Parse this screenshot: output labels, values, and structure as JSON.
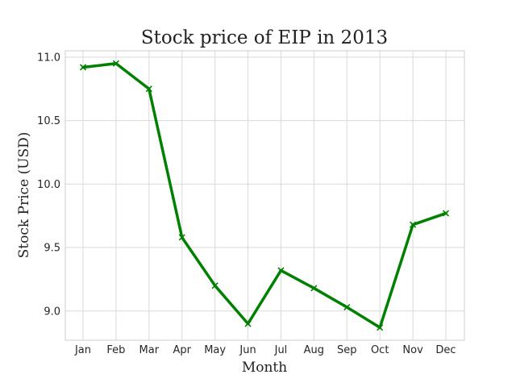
{
  "chart_data": {
    "type": "line",
    "title": "Stock price of EIP in 2013",
    "xlabel": "Month",
    "ylabel": "Stock Price (USD)",
    "categories": [
      "Jan",
      "Feb",
      "Mar",
      "Apr",
      "May",
      "Jun",
      "Jul",
      "Aug",
      "Sep",
      "Oct",
      "Nov",
      "Dec"
    ],
    "series": [
      {
        "values": [
          10.92,
          10.95,
          10.75,
          9.58,
          9.2,
          8.9,
          9.32,
          9.18,
          9.03,
          8.87,
          9.68,
          9.77
        ],
        "color": "#008000",
        "marker": "x"
      }
    ],
    "ylim": [
      8.77,
      11.05
    ],
    "yticks": [
      9.0,
      9.5,
      10.0,
      10.5,
      11.0
    ],
    "ytick_labels": [
      "9.0",
      "9.5",
      "10.0",
      "10.5",
      "11.0"
    ],
    "grid": true,
    "legend": "none"
  }
}
